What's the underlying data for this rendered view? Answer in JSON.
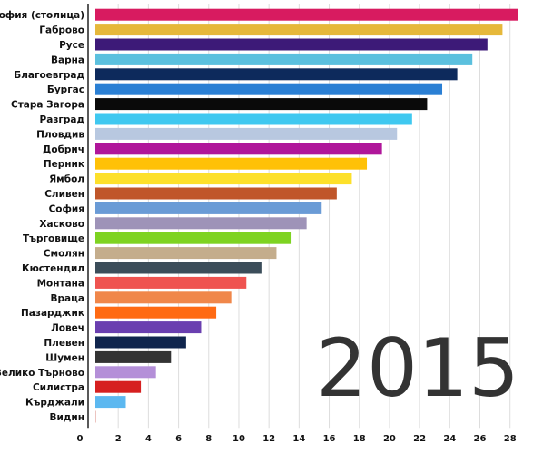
{
  "chart_data": {
    "type": "bar",
    "orientation": "horizontal",
    "title": "",
    "xlabel": "",
    "ylabel": "",
    "year": "2015",
    "xlim": [
      0,
      28.5
    ],
    "xticks": [
      0,
      2,
      4,
      6,
      8,
      10,
      12,
      14,
      16,
      18,
      20,
      22,
      24,
      26,
      28
    ],
    "grid": true,
    "legend": "none",
    "categories": [
      "София (столица)",
      "Габрово",
      "Русе",
      "Варна",
      "Благоевград",
      "Бургас",
      "Стара Загора",
      "Разград",
      "Пловдив",
      "Добрич",
      "Перник",
      "Ямбол",
      "Сливен",
      "София",
      "Хасково",
      "Търговище",
      "Смолян",
      "Кюстендил",
      "Монтана",
      "Враца",
      "Пазарджик",
      "Ловеч",
      "Плевен",
      "Шумен",
      "Велико Търново",
      "Силистра",
      "Кърджали",
      "Видин"
    ],
    "values": [
      28.5,
      27.5,
      26.5,
      25.5,
      24.5,
      23.5,
      22.5,
      21.5,
      20.5,
      19.5,
      18.5,
      17.5,
      16.5,
      15.5,
      14.5,
      13.5,
      12.5,
      11.5,
      10.5,
      9.5,
      8.5,
      7.5,
      6.5,
      5.5,
      4.5,
      3.5,
      2.5,
      0.5
    ],
    "colors": [
      "#d81b60",
      "#e6b83a",
      "#3d1a78",
      "#5bc0de",
      "#0d2a5c",
      "#2a7fd4",
      "#0a0a0a",
      "#3fc8f0",
      "#b8c8e0",
      "#b0169a",
      "#ffc107",
      "#fde02a",
      "#c0562a",
      "#6a9bd6",
      "#9e93b8",
      "#7ed321",
      "#c4ad8c",
      "#3b4d5a",
      "#ef5350",
      "#f0874a",
      "#ff6a13",
      "#6a3fb0",
      "#10254d",
      "#333333",
      "#b48fd8",
      "#d62020",
      "#5cb8f0",
      "#c0392b"
    ]
  }
}
